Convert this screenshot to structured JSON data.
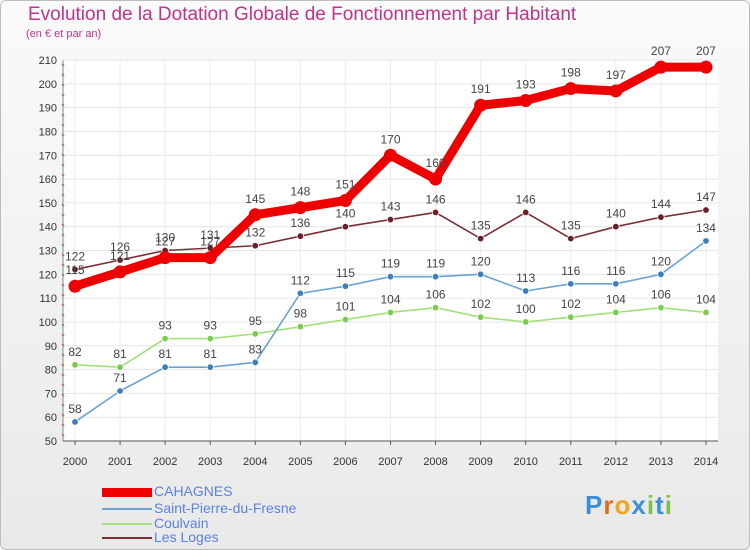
{
  "chart_data": {
    "type": "line",
    "title": "Evolution de la Dotation Globale de Fonctionnement par Habitant",
    "subtitle": "(en € et par an)",
    "x": [
      "2000",
      "2001",
      "2002",
      "2003",
      "2004",
      "2005",
      "2006",
      "2007",
      "2008",
      "2009",
      "2010",
      "2011",
      "2012",
      "2013",
      "2014"
    ],
    "y_ticks": [
      50,
      60,
      70,
      80,
      90,
      100,
      110,
      120,
      130,
      140,
      150,
      160,
      170,
      180,
      190,
      200,
      210
    ],
    "ylim": [
      50,
      210
    ],
    "series": [
      {
        "name": "CAHAGNES",
        "color": "#ee0000",
        "point_color": "#ee0000",
        "values": [
          115,
          121,
          127,
          127,
          145,
          148,
          151,
          170,
          160,
          191,
          193,
          198,
          197,
          207,
          207
        ]
      },
      {
        "name": "Saint-Pierre-du-Fresne",
        "color": "#6aa2d2",
        "point_color": "#3b7fc0",
        "values": [
          58,
          71,
          81,
          81,
          83,
          112,
          115,
          119,
          119,
          120,
          113,
          116,
          116,
          120,
          134
        ]
      },
      {
        "name": "Coulvain",
        "color": "#a3e07a",
        "point_color": "#7ccc4c",
        "values": [
          82,
          81,
          93,
          93,
          95,
          98,
          101,
          104,
          106,
          102,
          100,
          102,
          104,
          106,
          104
        ]
      },
      {
        "name": "Les Loges",
        "color": "#7a2f36",
        "point_color": "#6a2028",
        "values": [
          122,
          126,
          130,
          131,
          132,
          136,
          140,
          143,
          146,
          135,
          146,
          135,
          140,
          144,
          147
        ]
      }
    ]
  },
  "logo": {
    "letters": [
      "P",
      "r",
      "o",
      "x",
      "i",
      "t",
      "i"
    ],
    "colors": [
      "#3a8fd8",
      "#e36c1e",
      "#f2a51a",
      "#3a8fd8",
      "#7ec242",
      "#3a8fd8",
      "#7ec242"
    ]
  }
}
